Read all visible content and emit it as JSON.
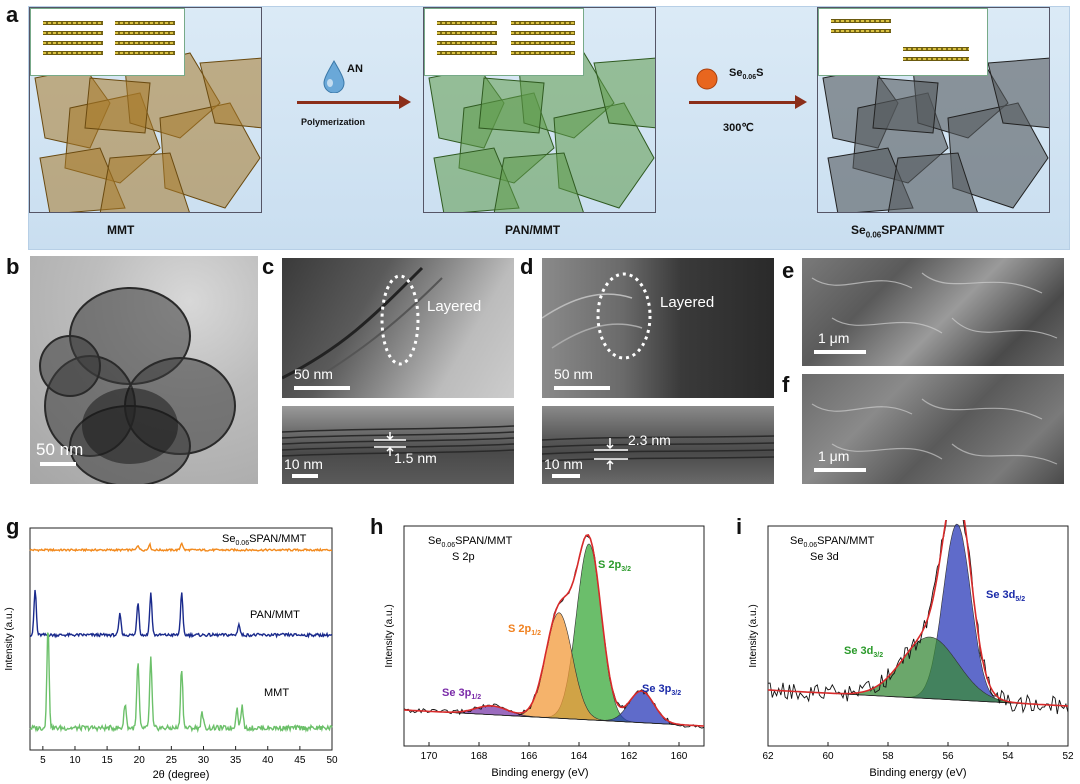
{
  "panel_letters": {
    "a": "a",
    "b": "b",
    "c": "c",
    "d": "d",
    "e": "e",
    "f": "f",
    "g": "g",
    "h": "h",
    "i": "i"
  },
  "schematic": {
    "mmt_label": "MMT",
    "pan_label": "PAN/MMT",
    "final_label_pre": "Se",
    "final_label_sub": "0.06",
    "final_label_post": "SPAN/MMT",
    "step1_reagent": "AN",
    "step1_process": "Polymerization",
    "step2_reagent_pre": "Se",
    "step2_reagent_sub": "0.06",
    "step2_reagent_post": "S",
    "step2_temperature": "300℃",
    "colors": {
      "mmt": "#a87a2a",
      "pan": "#5f9a4a",
      "final": "#555a5e",
      "arrow": "#8b2e1a",
      "drop": "#6aa8d8",
      "bead": "#e8661e"
    }
  },
  "micrographs": {
    "b_scale": "50 nm",
    "c_scale": "50 nm",
    "c_annotation": "Layered",
    "c_lower_scale": "10 nm",
    "c_spacing": "1.5 nm",
    "d_scale": "50 nm",
    "d_annotation": "Layered",
    "d_lower_scale": "10 nm",
    "d_spacing": "2.3 nm",
    "e_scale": "1 μm",
    "f_scale": "1 μm"
  },
  "chart_data": [
    {
      "type": "line",
      "panel": "g",
      "xlabel": "2θ (degree)",
      "ylabel": "Intensity (a.u.)",
      "xlim": [
        3,
        50
      ],
      "xticks": [
        5,
        10,
        15,
        20,
        25,
        30,
        35,
        40,
        45,
        50
      ],
      "series": [
        {
          "name": "Se0.06SPAN/MMT",
          "name_pre": "Se",
          "name_sub": "0.06",
          "name_post": "SPAN/MMT",
          "color": "#f28a1e",
          "baseline": 0.95,
          "peaks": [
            [
              19.8,
              0.12
            ],
            [
              21.6,
              0.14
            ],
            [
              26.6,
              0.18
            ]
          ]
        },
        {
          "name": "PAN/MMT",
          "color": "#1a2a8c",
          "baseline": 0.55,
          "peaks": [
            [
              3.8,
              0.75
            ],
            [
              17.0,
              0.35
            ],
            [
              19.8,
              0.55
            ],
            [
              21.8,
              0.7
            ],
            [
              26.6,
              0.7
            ],
            [
              35.5,
              0.18
            ]
          ]
        },
        {
          "name": "MMT",
          "color": "#6cc06a",
          "baseline": 0.0,
          "peaks": [
            [
              5.8,
              1.0
            ],
            [
              17.8,
              0.25
            ],
            [
              19.8,
              0.65
            ],
            [
              21.8,
              0.7
            ],
            [
              26.6,
              0.6
            ],
            [
              29.8,
              0.15
            ],
            [
              35.2,
              0.2
            ],
            [
              36.0,
              0.22
            ]
          ]
        }
      ]
    },
    {
      "type": "line",
      "panel": "h",
      "title_pre": "Se",
      "title_sub": "0.06",
      "title_post": "SPAN/MMT",
      "subtitle": "S 2p",
      "xlabel": "Binding energy (eV)",
      "ylabel": "Intensity (a.u.)",
      "xlim": [
        171,
        159
      ],
      "xticks": [
        170,
        168,
        166,
        164,
        162,
        160
      ],
      "components": [
        {
          "label_pre": "S 2p",
          "label_sub": "3/2",
          "center": 163.6,
          "height": 1.0,
          "width": 0.7,
          "color": "#3aa83a",
          "text_color": "#2a9a2a"
        },
        {
          "label_pre": "S 2p",
          "label_sub": "1/2",
          "center": 164.8,
          "height": 0.6,
          "width": 0.75,
          "color": "#f29a3a",
          "text_color": "#f0801e"
        },
        {
          "label_pre": "Se 3p",
          "label_sub": "3/2",
          "center": 161.5,
          "height": 0.18,
          "width": 0.7,
          "color": "#2a3ab8",
          "text_color": "#1a2aa8"
        },
        {
          "label_pre": "Se 3p",
          "label_sub": "1/2",
          "center": 167.5,
          "height": 0.05,
          "width": 0.9,
          "color": "#7a3aa8",
          "text_color": "#7a2aa8"
        }
      ]
    },
    {
      "type": "line",
      "panel": "i",
      "title_pre": "Se",
      "title_sub": "0.06",
      "title_post": "SPAN/MMT",
      "subtitle": "Se 3d",
      "xlabel": "Binding energy (eV)",
      "ylabel": "Intensity (a.u.)",
      "xlim": [
        62,
        52
      ],
      "xticks": [
        62,
        60,
        58,
        56,
        54,
        52
      ],
      "components": [
        {
          "label_pre": "Se 3d",
          "label_sub": "5/2",
          "center": 55.7,
          "height": 1.0,
          "width": 0.65,
          "color": "#2a3ab8",
          "text_color": "#1a2aa8"
        },
        {
          "label_pre": "Se 3d",
          "label_sub": "3/2",
          "center": 56.6,
          "height": 0.35,
          "width": 1.3,
          "color": "#3a8a3a",
          "text_color": "#2a9a2a"
        }
      ]
    }
  ]
}
